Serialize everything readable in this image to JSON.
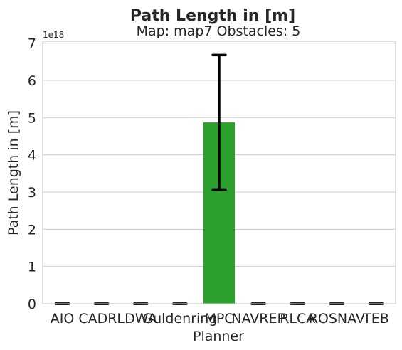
{
  "chart_data": {
    "type": "bar",
    "title": "Path Length in [m]",
    "subtitle": "Map: map7 Obstacles: 5",
    "xlabel": "Planner",
    "ylabel": "Path Length in [m]",
    "scale_label": "1e18",
    "categories": [
      "AIO",
      "CADRL",
      "DWA",
      "Guldenring",
      "MPC",
      "NAVREP",
      "RLCA",
      "ROSNAV",
      "TEB"
    ],
    "values": [
      0,
      0,
      0,
      0,
      4.87,
      0,
      0,
      0,
      0
    ],
    "error_low": [
      0,
      0,
      0,
      0,
      3.07,
      0,
      0,
      0,
      0
    ],
    "error_high": [
      0,
      0,
      0,
      0,
      6.68,
      0,
      0,
      0,
      0
    ],
    "yticks": [
      "0",
      "1",
      "2",
      "3",
      "4",
      "5",
      "6",
      "7"
    ],
    "ylim": [
      0,
      7.05
    ],
    "bar_color": "#2ca02c",
    "grid": true,
    "legend": "none"
  }
}
